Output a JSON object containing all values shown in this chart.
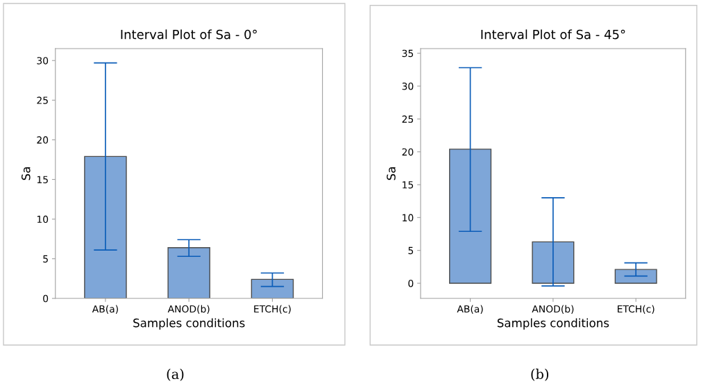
{
  "chart_data": [
    {
      "type": "bar",
      "title": "Interval Plot of Sa - 0°",
      "xlabel": "Samples conditions",
      "ylabel": "Sa",
      "categories": [
        "AB(a)",
        "ANOD(b)",
        "ETCH(c)"
      ],
      "values": [
        17.9,
        6.4,
        2.4
      ],
      "errors": [
        [
          6.1,
          29.7
        ],
        [
          5.3,
          7.4
        ],
        [
          1.5,
          3.2
        ]
      ],
      "color": "#7ea6d8",
      "ylim": [
        0,
        31.5
      ],
      "yticks": [
        0,
        5,
        10,
        15,
        20,
        25,
        30
      ],
      "grid": false,
      "annotations": [
        "(a)"
      ]
    },
    {
      "type": "bar",
      "title": "Interval Plot of Sa - 45°",
      "xlabel": "Samples conditions",
      "ylabel": "Sa",
      "categories": [
        "AB(a)",
        "ANOD(b)",
        "ETCH(c)"
      ],
      "values": [
        20.4,
        6.3,
        2.1
      ],
      "errors": [
        [
          7.9,
          32.8
        ],
        [
          -0.4,
          13.0
        ],
        [
          1.1,
          3.1
        ]
      ],
      "color": "#7ea6d8",
      "ylim": [
        -2.3,
        35.7
      ],
      "yticks": [
        0,
        5,
        10,
        15,
        20,
        25,
        30,
        35
      ],
      "grid": false,
      "annotations": [
        "(b)"
      ]
    }
  ]
}
